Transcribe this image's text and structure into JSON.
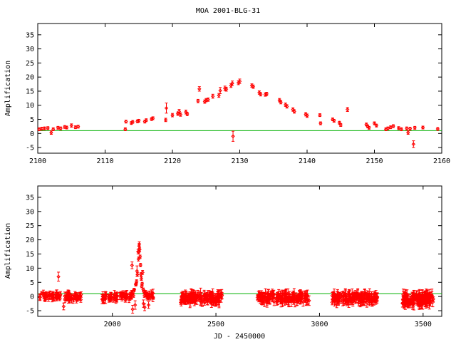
{
  "chart_data": [
    {
      "type": "scatter",
      "title": "MOA 2001-BLG-31",
      "xlabel": "",
      "ylabel": "Amplification",
      "xlim": [
        2100,
        2160
      ],
      "ylim": [
        -7,
        39
      ],
      "xticks": [
        2100,
        2110,
        2120,
        2130,
        2140,
        2150,
        2160
      ],
      "yticks": [
        -5,
        0,
        5,
        10,
        15,
        20,
        25,
        30,
        35
      ],
      "error_bars": true,
      "reference_line": {
        "y": 1,
        "color": "#00b000"
      },
      "marker_color": "#ff0000",
      "series": [
        {
          "points": [
            {
              "x": 2100.2,
              "y": 1.5,
              "err": 0.5
            },
            {
              "x": 2100.6,
              "y": 1.7,
              "err": 0.5
            },
            {
              "x": 2101.0,
              "y": 1.8,
              "err": 0.5
            },
            {
              "x": 2101.5,
              "y": 1.9,
              "err": 0.5
            },
            {
              "x": 2102.0,
              "y": 0.3,
              "err": 0.6
            },
            {
              "x": 2102.3,
              "y": 1.5,
              "err": 0.5
            },
            {
              "x": 2103.0,
              "y": 2.0,
              "err": 0.5
            },
            {
              "x": 2103.4,
              "y": 1.8,
              "err": 0.5
            },
            {
              "x": 2104.0,
              "y": 2.3,
              "err": 0.5
            },
            {
              "x": 2104.3,
              "y": 2.1,
              "err": 0.5
            },
            {
              "x": 2105.0,
              "y": 2.8,
              "err": 0.6
            },
            {
              "x": 2105.6,
              "y": 2.2,
              "err": 0.5
            },
            {
              "x": 2106.0,
              "y": 2.4,
              "err": 0.5
            },
            {
              "x": 2113.0,
              "y": 1.5,
              "err": 0.5
            },
            {
              "x": 2113.1,
              "y": 4.2,
              "err": 0.5
            },
            {
              "x": 2113.9,
              "y": 3.7,
              "err": 0.5
            },
            {
              "x": 2114.1,
              "y": 4.1,
              "err": 0.5
            },
            {
              "x": 2114.8,
              "y": 4.3,
              "err": 0.5
            },
            {
              "x": 2115.0,
              "y": 4.5,
              "err": 0.5
            },
            {
              "x": 2115.9,
              "y": 4.2,
              "err": 0.5
            },
            {
              "x": 2116.1,
              "y": 4.7,
              "err": 0.5
            },
            {
              "x": 2116.9,
              "y": 5.1,
              "err": 0.5
            },
            {
              "x": 2117.1,
              "y": 5.4,
              "err": 0.5
            },
            {
              "x": 2119.0,
              "y": 4.8,
              "err": 0.6
            },
            {
              "x": 2119.1,
              "y": 9.0,
              "err": 1.8
            },
            {
              "x": 2120.0,
              "y": 6.5,
              "err": 0.6
            },
            {
              "x": 2120.8,
              "y": 7.0,
              "err": 0.6
            },
            {
              "x": 2121.0,
              "y": 7.8,
              "err": 0.7
            },
            {
              "x": 2121.2,
              "y": 6.7,
              "err": 0.6
            },
            {
              "x": 2122.0,
              "y": 7.6,
              "err": 0.7
            },
            {
              "x": 2122.2,
              "y": 6.9,
              "err": 0.6
            },
            {
              "x": 2123.8,
              "y": 11.5,
              "err": 0.6
            },
            {
              "x": 2124.0,
              "y": 15.8,
              "err": 0.8
            },
            {
              "x": 2124.8,
              "y": 11.3,
              "err": 0.6
            },
            {
              "x": 2125.0,
              "y": 11.8,
              "err": 0.6
            },
            {
              "x": 2125.3,
              "y": 12.0,
              "err": 0.6
            },
            {
              "x": 2126.0,
              "y": 13.2,
              "err": 0.7
            },
            {
              "x": 2126.9,
              "y": 13.5,
              "err": 0.7
            },
            {
              "x": 2127.1,
              "y": 15.2,
              "err": 1.1
            },
            {
              "x": 2127.8,
              "y": 16.0,
              "err": 0.8
            },
            {
              "x": 2128.0,
              "y": 15.7,
              "err": 0.7
            },
            {
              "x": 2128.7,
              "y": 17.0,
              "err": 0.7
            },
            {
              "x": 2128.9,
              "y": 17.8,
              "err": 0.8
            },
            {
              "x": 2129.0,
              "y": -1.0,
              "err": 1.8
            },
            {
              "x": 2129.8,
              "y": 18.0,
              "err": 0.7
            },
            {
              "x": 2130.0,
              "y": 18.5,
              "err": 0.8
            },
            {
              "x": 2131.8,
              "y": 17.0,
              "err": 0.6
            },
            {
              "x": 2132.0,
              "y": 16.6,
              "err": 0.6
            },
            {
              "x": 2132.9,
              "y": 14.5,
              "err": 0.6
            },
            {
              "x": 2133.1,
              "y": 13.9,
              "err": 0.6
            },
            {
              "x": 2133.8,
              "y": 13.8,
              "err": 0.6
            },
            {
              "x": 2134.0,
              "y": 14.0,
              "err": 0.6
            },
            {
              "x": 2135.9,
              "y": 11.8,
              "err": 0.6
            },
            {
              "x": 2136.1,
              "y": 11.1,
              "err": 0.6
            },
            {
              "x": 2136.8,
              "y": 10.2,
              "err": 0.6
            },
            {
              "x": 2137.0,
              "y": 9.6,
              "err": 0.6
            },
            {
              "x": 2137.9,
              "y": 8.5,
              "err": 0.6
            },
            {
              "x": 2138.1,
              "y": 7.8,
              "err": 0.6
            },
            {
              "x": 2139.8,
              "y": 6.8,
              "err": 0.6
            },
            {
              "x": 2140.0,
              "y": 6.3,
              "err": 0.6
            },
            {
              "x": 2141.9,
              "y": 6.5,
              "err": 0.5
            },
            {
              "x": 2142.0,
              "y": 3.6,
              "err": 0.5
            },
            {
              "x": 2143.8,
              "y": 5.0,
              "err": 0.5
            },
            {
              "x": 2144.0,
              "y": 4.5,
              "err": 0.5
            },
            {
              "x": 2144.8,
              "y": 3.8,
              "err": 0.5
            },
            {
              "x": 2145.0,
              "y": 3.0,
              "err": 0.5
            },
            {
              "x": 2146.0,
              "y": 8.5,
              "err": 0.7
            },
            {
              "x": 2148.8,
              "y": 3.2,
              "err": 0.5
            },
            {
              "x": 2149.0,
              "y": 2.5,
              "err": 0.5
            },
            {
              "x": 2149.2,
              "y": 2.0,
              "err": 0.5
            },
            {
              "x": 2150.0,
              "y": 3.6,
              "err": 0.5
            },
            {
              "x": 2150.3,
              "y": 2.8,
              "err": 0.5
            },
            {
              "x": 2151.7,
              "y": 1.5,
              "err": 0.5
            },
            {
              "x": 2152.0,
              "y": 1.8,
              "err": 0.5
            },
            {
              "x": 2152.4,
              "y": 2.2,
              "err": 0.5
            },
            {
              "x": 2152.8,
              "y": 2.6,
              "err": 0.5
            },
            {
              "x": 2153.6,
              "y": 1.9,
              "err": 0.5
            },
            {
              "x": 2154.0,
              "y": 1.5,
              "err": 0.5
            },
            {
              "x": 2154.8,
              "y": 1.8,
              "err": 0.5
            },
            {
              "x": 2155.0,
              "y": 0.3,
              "err": 0.6
            },
            {
              "x": 2155.3,
              "y": 1.7,
              "err": 0.5
            },
            {
              "x": 2155.8,
              "y": -3.8,
              "err": 1.2
            },
            {
              "x": 2156.0,
              "y": 2.0,
              "err": 0.5
            },
            {
              "x": 2157.2,
              "y": 2.1,
              "err": 0.5
            },
            {
              "x": 2159.4,
              "y": 1.6,
              "err": 0.5
            }
          ]
        }
      ]
    },
    {
      "type": "scatter",
      "title": "",
      "xlabel": "JD - 2450000",
      "ylabel": "Amplification",
      "xlim": [
        1640,
        3590
      ],
      "ylim": [
        -7,
        39
      ],
      "xticks": [
        2000,
        2500,
        3000,
        3500
      ],
      "yticks": [
        -5,
        0,
        5,
        10,
        15,
        20,
        25,
        30,
        35
      ],
      "error_bars": true,
      "reference_line": {
        "y": 1,
        "color": "#00b000"
      },
      "marker_color": "#ff0000",
      "series": [
        {
          "dense_segments": [
            {
              "x_range": [
                1650,
                1750
              ],
              "n": 45,
              "y_mean": 0.2,
              "y_spread": 2.2,
              "err": 1.0
            },
            {
              "x_range": [
                1760,
                1850
              ],
              "n": 40,
              "y_mean": 0.0,
              "y_spread": 2.4,
              "err": 1.0
            },
            {
              "x_range": [
                1950,
                2095
              ],
              "n": 60,
              "y_mean": 0.0,
              "y_spread": 2.4,
              "err": 1.1
            },
            {
              "x_range": [
                2160,
                2200
              ],
              "n": 20,
              "y_mean": 0.2,
              "y_spread": 2.0,
              "err": 1.0
            },
            {
              "x_range": [
                2330,
                2530
              ],
              "n": 140,
              "y_mean": -0.5,
              "y_spread": 3.2,
              "err": 1.3
            },
            {
              "x_range": [
                2700,
                2950
              ],
              "n": 160,
              "y_mean": -0.4,
              "y_spread": 3.2,
              "err": 1.3
            },
            {
              "x_range": [
                3060,
                3280
              ],
              "n": 140,
              "y_mean": -0.5,
              "y_spread": 3.2,
              "err": 1.3
            },
            {
              "x_range": [
                3400,
                3550
              ],
              "n": 130,
              "y_mean": -1.0,
              "y_spread": 3.6,
              "err": 1.5
            }
          ],
          "points": [
            {
              "x": 1740,
              "y": 7.0,
              "err": 1.6
            },
            {
              "x": 1765,
              "y": -3.5,
              "err": 1.2
            },
            {
              "x": 2100,
              "y": 1.6,
              "err": 0.5
            },
            {
              "x": 2102,
              "y": 0.3,
              "err": 0.6
            },
            {
              "x": 2104,
              "y": 2.3,
              "err": 0.5
            },
            {
              "x": 2106,
              "y": 2.4,
              "err": 0.5
            },
            {
              "x": 2113,
              "y": 4.2,
              "err": 0.5
            },
            {
              "x": 2115,
              "y": 4.5,
              "err": 0.5
            },
            {
              "x": 2117,
              "y": 5.4,
              "err": 0.5
            },
            {
              "x": 2119,
              "y": 9.0,
              "err": 1.8
            },
            {
              "x": 2121,
              "y": 7.8,
              "err": 0.7
            },
            {
              "x": 2124,
              "y": 15.8,
              "err": 0.8
            },
            {
              "x": 2126,
              "y": 13.2,
              "err": 0.7
            },
            {
              "x": 2128,
              "y": 15.7,
              "err": 0.7
            },
            {
              "x": 2129,
              "y": 17.8,
              "err": 0.8
            },
            {
              "x": 2130,
              "y": 18.5,
              "err": 0.8
            },
            {
              "x": 2132,
              "y": 16.6,
              "err": 0.6
            },
            {
              "x": 2134,
              "y": 14.0,
              "err": 0.6
            },
            {
              "x": 2136,
              "y": 11.1,
              "err": 0.6
            },
            {
              "x": 2138,
              "y": 7.8,
              "err": 0.6
            },
            {
              "x": 2140,
              "y": 6.3,
              "err": 0.6
            },
            {
              "x": 2142,
              "y": 3.6,
              "err": 0.5
            },
            {
              "x": 2144,
              "y": 4.5,
              "err": 0.5
            },
            {
              "x": 2146,
              "y": 8.5,
              "err": 0.7
            },
            {
              "x": 2149,
              "y": 2.5,
              "err": 0.5
            },
            {
              "x": 2152,
              "y": 1.8,
              "err": 0.5
            },
            {
              "x": 2155,
              "y": 0.3,
              "err": 0.6
            },
            {
              "x": 2156,
              "y": -3.8,
              "err": 1.2
            },
            {
              "x": 2159,
              "y": 1.6,
              "err": 0.5
            },
            {
              "x": 2095,
              "y": 11.0,
              "err": 1.2
            },
            {
              "x": 2098,
              "y": -4.5,
              "err": 1.4
            },
            {
              "x": 2110,
              "y": -3.0,
              "err": 1.5
            },
            {
              "x": 2150,
              "y": -2.5,
              "err": 1.3
            },
            {
              "x": 2175,
              "y": -3.0,
              "err": 1.2
            }
          ]
        }
      ]
    }
  ]
}
